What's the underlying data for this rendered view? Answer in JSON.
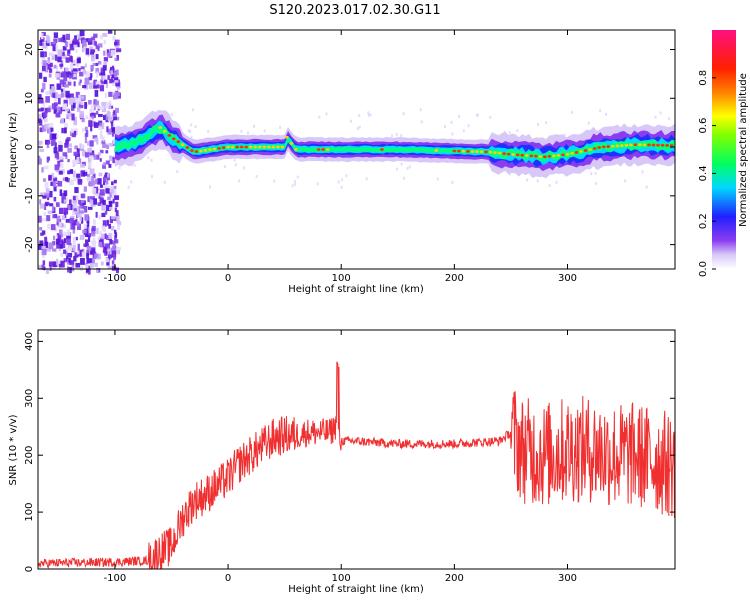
{
  "title": "S120.2023.017.02.30.G11",
  "chart_data": [
    {
      "type": "heatmap",
      "xlabel": "Height of straight line (km)",
      "ylabel": "Frequency (Hz)",
      "xlim": [
        -168,
        395
      ],
      "ylim": [
        -25,
        24
      ],
      "xticks": [
        -100,
        0,
        100,
        200,
        300
      ],
      "yticks": [
        -20,
        -10,
        0,
        10,
        20
      ],
      "colorbar": {
        "label": "Normalized spectral amplitude",
        "range": [
          0,
          1
        ],
        "ticks": [
          0.0,
          0.2,
          0.4,
          0.6,
          0.8
        ],
        "colormap": "rainbow (purple-blue-cyan-green-yellow-red-magenta)"
      },
      "ridge": {
        "x": [
          -100,
          -80,
          -60,
          -50,
          -40,
          -30,
          0,
          30,
          50,
          52,
          60,
          100,
          150,
          200,
          230,
          250,
          280,
          300,
          330,
          360,
          395
        ],
        "y": [
          0,
          1,
          4,
          2,
          0.5,
          -1,
          0,
          0,
          0,
          2,
          -0.5,
          -0.5,
          -0.5,
          -0.8,
          -1,
          -1.5,
          -2,
          -1.5,
          0,
          0.5,
          0.3
        ]
      }
    },
    {
      "type": "line",
      "xlabel": "Height of straight line (km)",
      "ylabel": "SNR (10 * v/v)",
      "xlim": [
        -168,
        395
      ],
      "ylim": [
        0,
        420
      ],
      "xticks": [
        -100,
        0,
        100,
        200,
        300
      ],
      "yticks": [
        0,
        100,
        200,
        300,
        400
      ],
      "series": [
        {
          "color": "#f03030",
          "x": [
            -168,
            -100,
            -70,
            -60,
            -50,
            -40,
            -30,
            -20,
            -10,
            0,
            10,
            20,
            30,
            40,
            50,
            60,
            70,
            80,
            90,
            95,
            100,
            110,
            150,
            200,
            240,
            250,
            260,
            280,
            300,
            320,
            340,
            360,
            380,
            395
          ],
          "y": [
            10,
            12,
            15,
            30,
            40,
            90,
            120,
            130,
            145,
            160,
            185,
            200,
            215,
            230,
            235,
            235,
            240,
            240,
            240,
            250,
            225,
            225,
            220,
            220,
            225,
            240,
            210,
            200,
            210,
            210,
            200,
            200,
            190,
            180
          ]
        }
      ]
    }
  ]
}
